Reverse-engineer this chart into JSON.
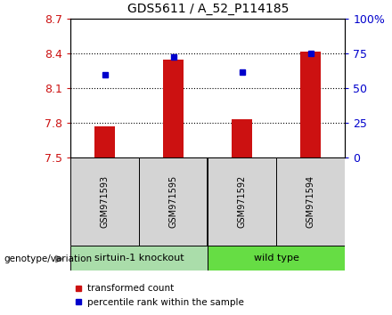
{
  "title": "GDS5611 / A_52_P114185",
  "samples": [
    "GSM971593",
    "GSM971595",
    "GSM971592",
    "GSM971594"
  ],
  "bar_values": [
    7.77,
    8.35,
    7.83,
    8.42
  ],
  "bar_bottom": 7.5,
  "blue_marker_values": [
    8.22,
    8.37,
    8.24,
    8.4
  ],
  "ylim_left": [
    7.5,
    8.7
  ],
  "ylim_right": [
    0,
    100
  ],
  "yticks_left": [
    7.5,
    7.8,
    8.1,
    8.4,
    8.7
  ],
  "ytick_labels_left": [
    "7.5",
    "7.8",
    "8.1",
    "8.4",
    "8.7"
  ],
  "yticks_right": [
    0,
    25,
    50,
    75,
    100
  ],
  "ytick_labels_right": [
    "0",
    "25",
    "50",
    "75",
    "100%"
  ],
  "hlines": [
    7.8,
    8.1,
    8.4
  ],
  "bar_color": "#CC1111",
  "marker_color": "#0000CC",
  "group1_label": "sirtuin-1 knockout",
  "group2_label": "wild type",
  "group1_indices": [
    0,
    1
  ],
  "group2_indices": [
    2,
    3
  ],
  "group1_color": "#aaddaa",
  "group2_color": "#66dd44",
  "sample_box_color": "#d4d4d4",
  "genotype_label": "genotype/variation",
  "legend_red": "transformed count",
  "legend_blue": "percentile rank within the sample",
  "fig_bg": "#ffffff",
  "bar_width": 0.3
}
